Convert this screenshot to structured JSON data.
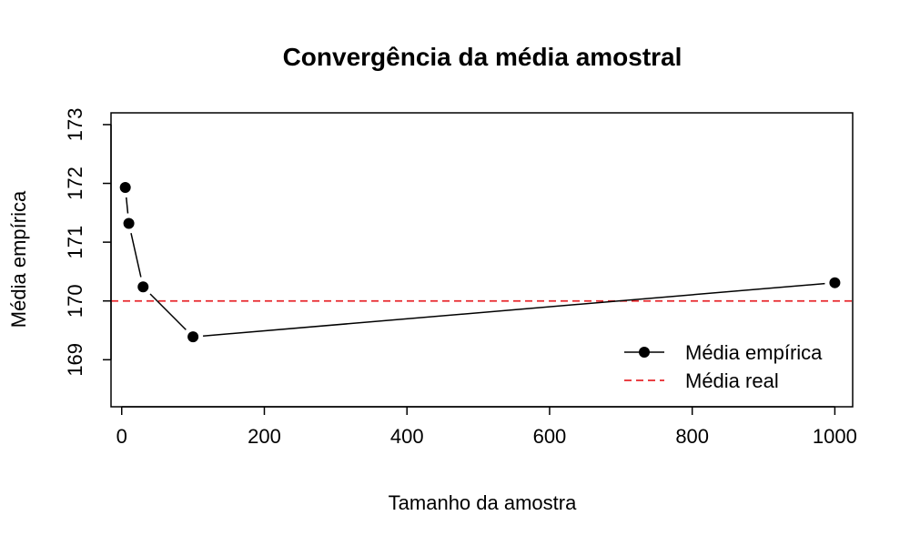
{
  "chart_data": {
    "type": "line",
    "title": "Convergência da média amostral",
    "xlabel": "Tamanho da amostra",
    "ylabel": "Média empírica",
    "xlim": [
      -15,
      1025
    ],
    "ylim": [
      168.2,
      173.2
    ],
    "x_ticks": [
      0,
      200,
      400,
      600,
      800,
      1000
    ],
    "x_tick_labels": [
      "0",
      "200",
      "400",
      "600",
      "800",
      "1000"
    ],
    "y_ticks": [
      169,
      170,
      171,
      172,
      173
    ],
    "y_tick_labels": [
      "169",
      "170",
      "171",
      "172",
      "173"
    ],
    "grid": false,
    "legend_position": "bottom-right",
    "series": [
      {
        "name": "Média empírica",
        "style": "line-points",
        "color": "#000000",
        "x": [
          5,
          10,
          30,
          100,
          1000
        ],
        "y": [
          171.93,
          171.32,
          170.24,
          169.39,
          170.31
        ]
      }
    ],
    "reference_lines": [
      {
        "name": "Média real",
        "y": 170,
        "color": "#e8262b",
        "style": "dashed"
      }
    ]
  }
}
